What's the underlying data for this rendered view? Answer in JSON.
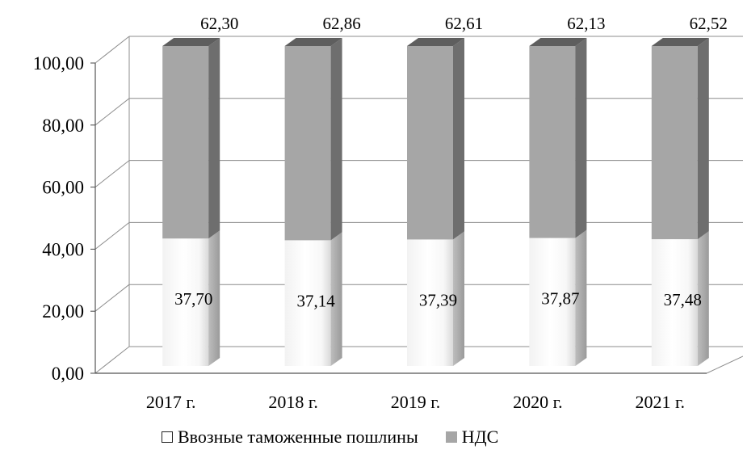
{
  "chart_data": {
    "type": "bar",
    "stacked": true,
    "three_d": true,
    "categories": [
      "2017 г.",
      "2018 г.",
      "2019 г.",
      "2020 г.",
      "2021 г."
    ],
    "series": [
      {
        "name": "Ввозные таможенные пошлины",
        "values": [
          37.7,
          37.14,
          37.39,
          37.87,
          37.48
        ],
        "color": "#ffffff"
      },
      {
        "name": "НДС",
        "values": [
          62.3,
          62.86,
          62.61,
          62.13,
          62.52
        ],
        "color": "#a6a6a6"
      }
    ],
    "data_labels": {
      "bottom": [
        "37,70",
        "37,14",
        "37,39",
        "37,87",
        "37,48"
      ],
      "top": [
        "62,30",
        "62,86",
        "62,61",
        "62,13",
        "62,52"
      ]
    },
    "y_ticks": [
      "0,00",
      "20,00",
      "40,00",
      "60,00",
      "80,00",
      "100,00"
    ],
    "ylim": [
      0,
      100
    ],
    "grid": true,
    "legend_position": "bottom",
    "title": "",
    "xlabel": "",
    "ylabel": ""
  }
}
